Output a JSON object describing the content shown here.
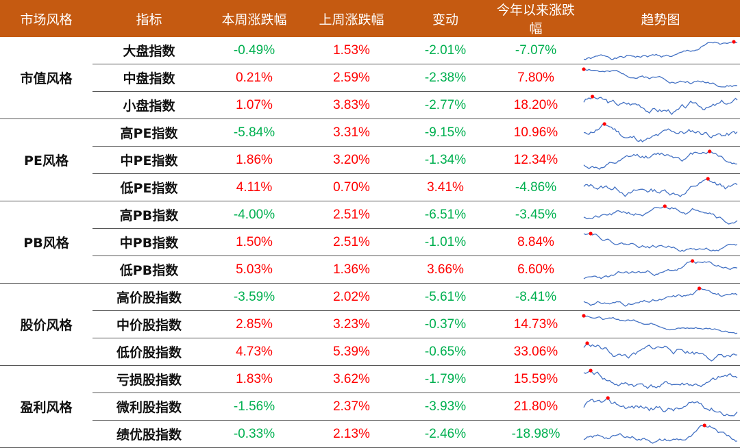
{
  "headers": [
    "市场风格",
    "指标",
    "本周涨跌幅",
    "上周涨跌幅",
    "变动",
    "今年以来涨跌幅",
    "趋势图"
  ],
  "colors": {
    "header_bg": "#C55A11",
    "positive": "#FF0000",
    "negative": "#00B050",
    "sparkline": "#4472C4",
    "marker": "#FF0000"
  },
  "groups": [
    {
      "name": "市值风格",
      "rows": [
        {
          "index": "大盘指数",
          "this_week": "-0.49%",
          "last_week": "1.53%",
          "change": "-2.01%",
          "ytd": "-7.07%",
          "peak_pos": 0.83
        },
        {
          "index": "中盘指数",
          "this_week": "0.21%",
          "last_week": "2.59%",
          "change": "-2.38%",
          "ytd": "7.80%",
          "peak_pos": 0.0
        },
        {
          "index": "小盘指数",
          "this_week": "1.07%",
          "last_week": "3.83%",
          "change": "-2.77%",
          "ytd": "18.20%",
          "peak_pos": 0.0
        }
      ]
    },
    {
      "name": "PE风格",
      "rows": [
        {
          "index": "高PE指数",
          "this_week": "-5.84%",
          "last_week": "3.31%",
          "change": "-9.15%",
          "ytd": "10.96%",
          "peak_pos": 0.13
        },
        {
          "index": "中PE指数",
          "this_week": "1.86%",
          "last_week": "3.20%",
          "change": "-1.34%",
          "ytd": "12.34%",
          "peak_pos": 0.82
        },
        {
          "index": "低PE指数",
          "this_week": "4.11%",
          "last_week": "0.70%",
          "change": "3.41%",
          "ytd": "-4.86%",
          "peak_pos": 0.78
        }
      ]
    },
    {
      "name": "PB风格",
      "rows": [
        {
          "index": "高PB指数",
          "this_week": "-4.00%",
          "last_week": "2.51%",
          "change": "-6.51%",
          "ytd": "-3.45%",
          "peak_pos": 0.83
        },
        {
          "index": "中PB指数",
          "this_week": "1.50%",
          "last_week": "2.51%",
          "change": "-1.01%",
          "ytd": "8.84%",
          "peak_pos": 0.0
        },
        {
          "index": "低PB指数",
          "this_week": "5.03%",
          "last_week": "1.36%",
          "change": "3.66%",
          "ytd": "6.60%",
          "peak_pos": 0.72
        }
      ]
    },
    {
      "name": "股价风格",
      "rows": [
        {
          "index": "高价股指数",
          "this_week": "-3.59%",
          "last_week": "2.02%",
          "change": "-5.61%",
          "ytd": "-8.41%",
          "peak_pos": 0.83
        },
        {
          "index": "中价股指数",
          "this_week": "2.85%",
          "last_week": "3.23%",
          "change": "-0.37%",
          "ytd": "14.73%",
          "peak_pos": 0.0
        },
        {
          "index": "低价股指数",
          "this_week": "4.73%",
          "last_week": "5.39%",
          "change": "-0.65%",
          "ytd": "33.06%",
          "peak_pos": 0.0
        }
      ]
    },
    {
      "name": "盈利风格",
      "rows": [
        {
          "index": "亏损股指数",
          "this_week": "1.83%",
          "last_week": "3.62%",
          "change": "-1.79%",
          "ytd": "15.59%",
          "peak_pos": 0.0
        },
        {
          "index": "微利股指数",
          "this_week": "-1.56%",
          "last_week": "2.37%",
          "change": "-3.93%",
          "ytd": "21.80%",
          "peak_pos": 0.0
        },
        {
          "index": "绩优股指数",
          "this_week": "-0.33%",
          "last_week": "2.13%",
          "change": "-2.46%",
          "ytd": "-18.98%",
          "peak_pos": 0.83
        }
      ]
    }
  ]
}
